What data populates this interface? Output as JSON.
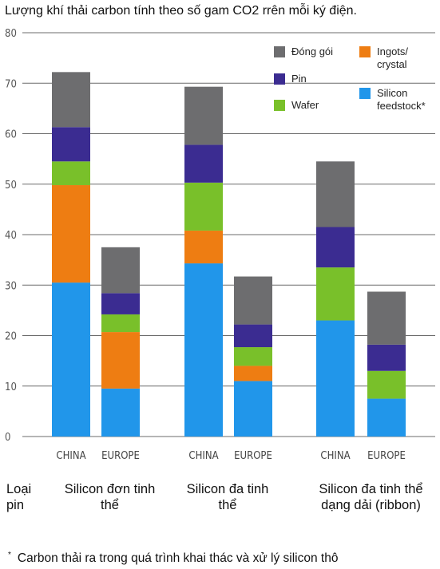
{
  "title": "Lượng khí thải carbon tính theo số gam CO2 rrên mỗi ký điện.",
  "row_label": "Loại pin",
  "footnote": {
    "marker": "*",
    "text": "Carbon thải ra trong quá trình khai thác và xử lý silicon thô"
  },
  "colors": {
    "Silicon feedstock": "#2196ea",
    "Ingots/crystal": "#ee7d12",
    "Wafer": "#79c02a",
    "Pin": "#3b2c91",
    "Đóng gói": "#6d6d6f",
    "gridline": "#6b6b6b"
  },
  "chart_data": {
    "type": "bar",
    "stacked": true,
    "title": "Lượng khí thải carbon tính theo số gam CO2 rrên mỗi ký điện.",
    "ylim": [
      0,
      80
    ],
    "yticks": [
      0,
      10,
      20,
      30,
      40,
      50,
      60,
      70,
      80
    ],
    "grid": true,
    "legend_position": "top-right",
    "groups": [
      {
        "label": "Silicon đơn tinh thể",
        "categories": [
          "CHINA",
          "EUROPE"
        ]
      },
      {
        "label": "Silicon đa tinh thể",
        "categories": [
          "CHINA",
          "EUROPE"
        ]
      },
      {
        "label": "Silicon đa tinh thể dạng dải (ribbon)",
        "categories": [
          "CHINA",
          "EUROPE"
        ]
      }
    ],
    "categories": [
      "CHINA",
      "EUROPE",
      "CHINA",
      "EUROPE",
      "CHINA",
      "EUROPE"
    ],
    "series": [
      {
        "name": "Silicon feedstock",
        "legend_label": "Silicon feedstock*",
        "values": [
          30.5,
          9.5,
          34.3,
          11.0,
          23.0,
          7.5
        ]
      },
      {
        "name": "Ingots/crystal",
        "legend_label": "Ingots/ crystal",
        "values": [
          19.3,
          11.2,
          6.5,
          3.0,
          0,
          0
        ]
      },
      {
        "name": "Wafer",
        "legend_label": "Wafer",
        "values": [
          4.7,
          3.5,
          9.5,
          3.7,
          10.5,
          5.5
        ]
      },
      {
        "name": "Pin",
        "legend_label": "Pin",
        "values": [
          6.8,
          4.2,
          7.5,
          4.5,
          8.0,
          5.2
        ]
      },
      {
        "name": "Đóng gói",
        "legend_label": "Đóng gói",
        "values": [
          10.9,
          9.1,
          11.5,
          9.5,
          13.0,
          10.5
        ]
      }
    ],
    "legend": [
      {
        "series": "Đóng gói",
        "lines": [
          "Đóng gói"
        ]
      },
      {
        "series": "Ingots/crystal",
        "lines": [
          "Ingots/",
          "crystal"
        ]
      },
      {
        "series": "Pin",
        "lines": [
          "Pin"
        ]
      },
      {
        "series": "Wafer",
        "lines": [
          "Wafer"
        ]
      },
      {
        "series": "Silicon feedstock",
        "lines": [
          "Silicon",
          "feedstock*"
        ]
      }
    ]
  }
}
